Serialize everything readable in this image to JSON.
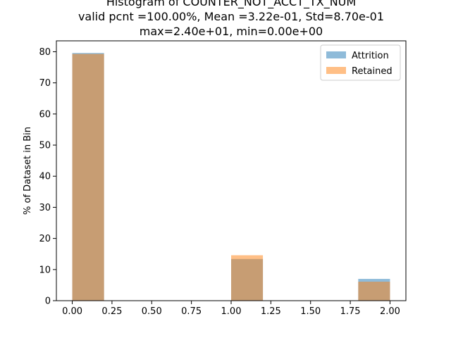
{
  "chart_data": {
    "type": "bar",
    "title_lines": [
      "Histogram of COUNTER_NOT_ACCT_TX_NUM",
      "valid pcnt =100.00%, Mean =3.22e-01, Std=8.70e-01",
      "max=2.40e+01, min=0.00e+00"
    ],
    "xlabel": "",
    "ylabel": "% of Dataset in Bin",
    "xlim": [
      -0.1,
      2.1
    ],
    "ylim": [
      0,
      83.5
    ],
    "x_ticks": [
      0.0,
      0.25,
      0.5,
      0.75,
      1.0,
      1.25,
      1.5,
      1.75,
      2.0
    ],
    "x_tick_labels": [
      "0.00",
      "0.25",
      "0.50",
      "0.75",
      "1.00",
      "1.25",
      "1.50",
      "1.75",
      "2.00"
    ],
    "y_ticks": [
      0,
      10,
      20,
      30,
      40,
      50,
      60,
      70,
      80
    ],
    "y_tick_labels": [
      "0",
      "10",
      "20",
      "30",
      "40",
      "50",
      "60",
      "70",
      "80"
    ],
    "bin_edges": [
      0.0,
      0.2,
      0.4,
      0.6,
      0.8,
      1.0,
      1.2,
      1.4,
      1.6,
      1.8,
      2.0
    ],
    "series": [
      {
        "name": "Attrition",
        "color": "#1f77b4",
        "alpha": 0.5,
        "values": [
          79.6,
          0,
          0,
          0,
          0,
          13.4,
          0,
          0,
          0,
          7.0
        ]
      },
      {
        "name": "Retained",
        "color": "#ff7f0e",
        "alpha": 0.5,
        "values": [
          79.3,
          0,
          0,
          0,
          0,
          14.6,
          0,
          0,
          0,
          6.1
        ]
      }
    ],
    "legend_position": "top-right",
    "grid": false
  }
}
